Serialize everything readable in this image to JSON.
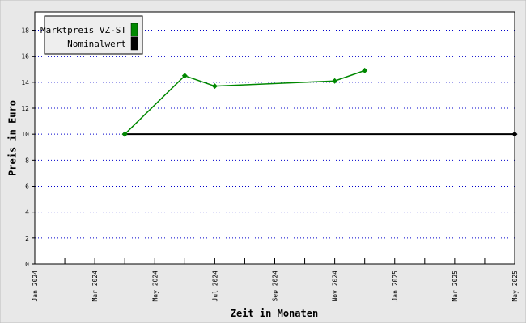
{
  "chart_data": {
    "type": "line",
    "x_label": "Zeit in Monaten",
    "y_label": "Preis in Euro",
    "xlim": [
      "2024-01",
      "2025-05"
    ],
    "xticks": [
      {
        "value": "2024-01",
        "label": "Jan 2024"
      },
      {
        "value": "2024-03",
        "label": "Mar 2024"
      },
      {
        "value": "2024-05",
        "label": "May 2024"
      },
      {
        "value": "2024-07",
        "label": "Jul 2024"
      },
      {
        "value": "2024-09",
        "label": "Sep 2024"
      },
      {
        "value": "2024-11",
        "label": "Nov 2024"
      },
      {
        "value": "2025-01",
        "label": "Jan 2025"
      },
      {
        "value": "2025-03",
        "label": "Mar 2025"
      },
      {
        "value": "2025-05",
        "label": "May 2025"
      }
    ],
    "xminorticks": [
      "2024-02",
      "2024-04",
      "2024-06",
      "2024-08",
      "2024-10",
      "2024-12",
      "2025-02",
      "2025-04"
    ],
    "ylim": [
      0,
      19.4
    ],
    "yticks": [
      0,
      2,
      4,
      6,
      8,
      10,
      12,
      14,
      16,
      18
    ],
    "grid": true,
    "legend": "upper left",
    "series": [
      {
        "name": "Marktpreis VZ-ST",
        "color": "#008800",
        "x": [
          "2024-04",
          "2024-06",
          "2024-07",
          "2024-11",
          "2024-12"
        ],
        "values": [
          10,
          14.5,
          13.7,
          14.1,
          14.9
        ]
      },
      {
        "name": "Nominalwert",
        "color": "#000000",
        "x": [
          "2024-04",
          "2025-05"
        ],
        "values": [
          10,
          10
        ]
      }
    ]
  }
}
